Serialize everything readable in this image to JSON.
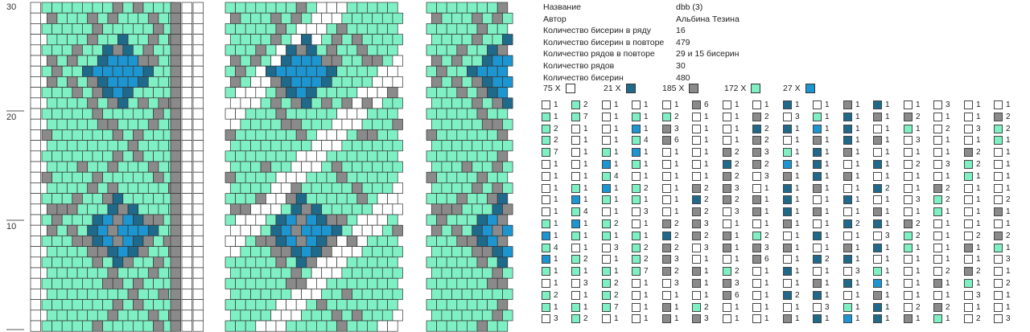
{
  "palette": {
    "white": "#ffffff",
    "dark_blue": "#1f6a8a",
    "gray": "#8a8a8a",
    "mint": "#7ef0c4",
    "blue": "#1c95d0"
  },
  "row_markers": [
    "30",
    "20",
    "10"
  ],
  "info": {
    "rows": [
      {
        "label": "Название",
        "value": "dbb (3)"
      },
      {
        "label": "Автор",
        "value": "Альбина Тезина"
      },
      {
        "label": "Количество бисерин в ряду",
        "value": "16"
      },
      {
        "label": "Количество бисерин в повторе",
        "value": "479"
      },
      {
        "label": "Количество рядов в повторе",
        "value": "29 и 15 бисерин"
      },
      {
        "label": "Количество рядов",
        "value": "30"
      },
      {
        "label": "Количество бисерин",
        "value": "480"
      }
    ]
  },
  "color_counts": [
    {
      "label": "75 X",
      "color": "white"
    },
    {
      "label": "21 X",
      "color": "dark_blue"
    },
    {
      "label": "185 X",
      "color": "gray"
    },
    {
      "label": "172 X",
      "color": "mint"
    },
    {
      "label": "27 X",
      "color": "blue"
    }
  ],
  "sequence_columns": [
    [
      "W1",
      "M1",
      "M2",
      "M2",
      "M7",
      "W1",
      "W1",
      "W1",
      "W1",
      "W1",
      "M1",
      "B1",
      "M4",
      "B1",
      "M1",
      "W1",
      "M2",
      "M1",
      "W3"
    ],
    [
      "W1",
      "M2",
      "G3",
      "G6",
      "W1",
      "W1",
      "W1",
      "W1",
      "W1",
      "W1",
      "G2",
      "D2",
      "G2",
      "G3",
      "G2",
      "W3",
      "W1",
      "G1",
      "G1"
    ],
    [
      "D1",
      "W3",
      "D1",
      "W1",
      "M1",
      "B1",
      "G1",
      "D1",
      "D1",
      "D1",
      "G1",
      "W1",
      "G1",
      "W1",
      "D1",
      "W1",
      "D2",
      "W1",
      "G1"
    ],
    [
      "W1",
      "G2",
      "M1",
      "W3",
      "W1",
      "W2",
      "W1",
      "W1",
      "W3",
      "W1",
      "G2",
      "M2",
      "M1",
      "W1",
      "W1",
      "W1",
      "W1",
      "W2",
      "G1"
    ]
  ],
  "grid_left": {
    "cols": 16,
    "rows": 32
  },
  "grid_mid": {
    "cols": 16,
    "rows": 32
  },
  "grid_right": {
    "cols": 8,
    "rows": 32
  }
}
